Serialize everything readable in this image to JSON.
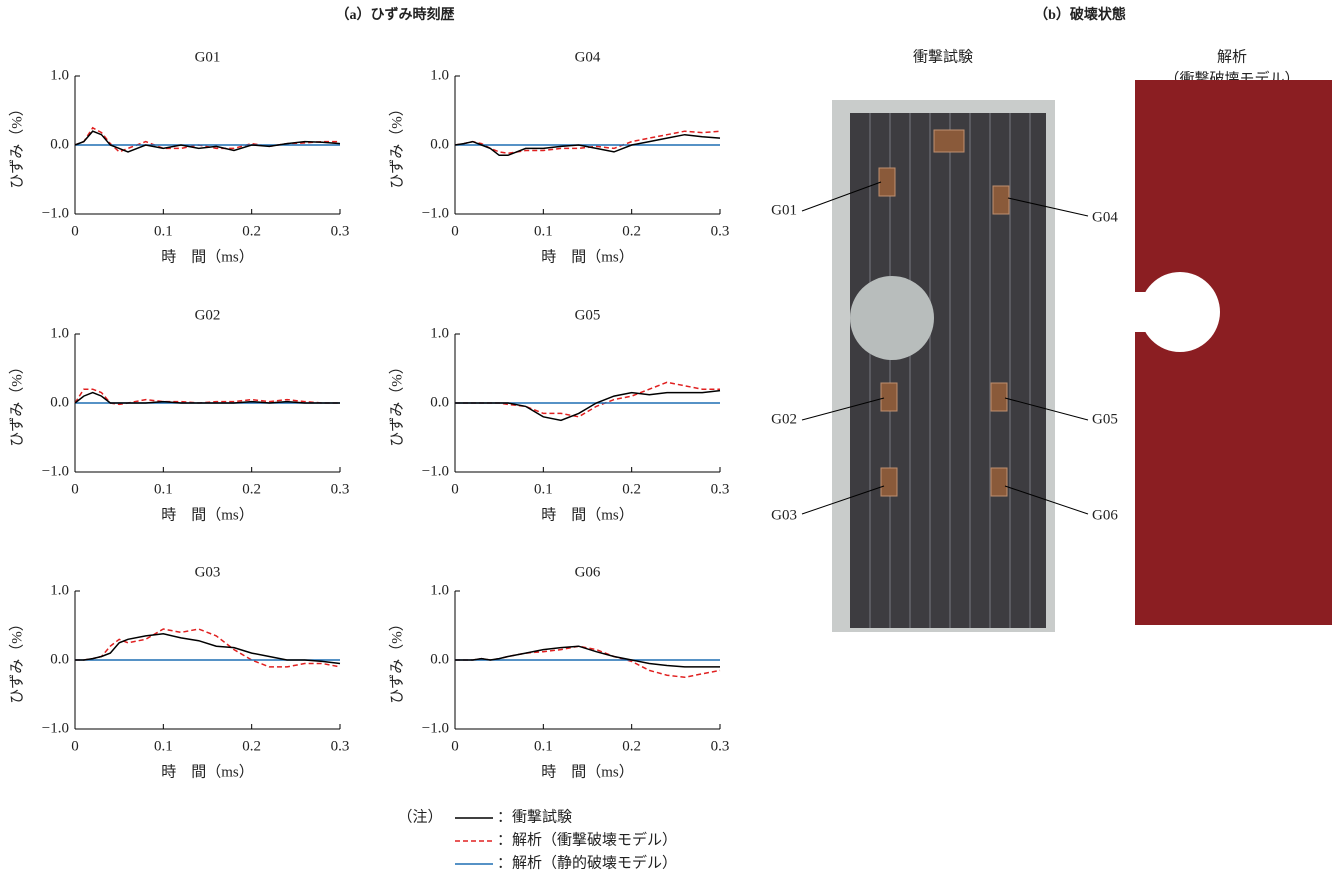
{
  "panel_a_title": "（a）ひずみ時刻歴",
  "panel_b": {
    "title": "（b）破壊状態",
    "photo_label": "衝撃試験",
    "model_label": [
      "解析",
      "（衝撃破壊モデル）"
    ],
    "gauges": [
      "G01",
      "G04",
      "G02",
      "G05",
      "G03",
      "G06"
    ]
  },
  "legend": {
    "label": "（注）",
    "entries": [
      {
        "name": "：衝撃試験",
        "color": "#000000",
        "dash": false
      },
      {
        "name": "：解析（衝撃破壊モデル）",
        "color": "#e02020",
        "dash": true
      },
      {
        "name": "：解析（静的破壊モデル）",
        "color": "#1f6eb4",
        "dash": false
      }
    ]
  },
  "chart_data": [
    {
      "type": "line",
      "title": "G01",
      "x_label": "時　間（ms）",
      "y_label": "ひずみ（%）",
      "xlim": [
        0,
        0.3
      ],
      "ylim": [
        -1,
        1
      ],
      "xticks": [
        0,
        0.1,
        0.2,
        0.3
      ],
      "yticks": [
        {
          "value": -1,
          "label": "−1.0"
        },
        {
          "value": 0,
          "label": "0.0"
        },
        {
          "value": 1,
          "label": "1.0"
        }
      ],
      "x": [
        0,
        0.01,
        0.02,
        0.03,
        0.04,
        0.05,
        0.06,
        0.08,
        0.1,
        0.12,
        0.14,
        0.16,
        0.18,
        0.2,
        0.22,
        0.24,
        0.26,
        0.28,
        0.3
      ],
      "series": [
        {
          "color": "#e02020",
          "dash": true,
          "values": [
            0,
            0.05,
            0.25,
            0.18,
            0.02,
            -0.1,
            -0.05,
            0.05,
            -0.05,
            -0.05,
            0,
            -0.05,
            -0.05,
            0.02,
            -0.02,
            0.02,
            0.03,
            0.05,
            0.05
          ]
        },
        {
          "color": "#1f6eb4",
          "dash": false,
          "values": [
            0,
            0,
            0,
            0,
            0,
            0,
            0,
            0,
            0,
            0,
            0,
            0,
            0,
            0,
            0,
            0,
            0,
            0,
            0
          ]
        },
        {
          "color": "#000000",
          "dash": false,
          "values": [
            0,
            0.05,
            0.2,
            0.15,
            0,
            -0.05,
            -0.1,
            0,
            -0.05,
            0,
            -0.05,
            -0.02,
            -0.08,
            0,
            -0.02,
            0.02,
            0.05,
            0.04,
            0.02
          ]
        }
      ]
    },
    {
      "type": "line",
      "title": "G04",
      "x_label": "時　間（ms）",
      "y_label": "ひずみ（%）",
      "xlim": [
        0,
        0.3
      ],
      "ylim": [
        -1,
        1
      ],
      "xticks": [
        0,
        0.1,
        0.2,
        0.3
      ],
      "yticks": [
        {
          "value": -1,
          "label": "−1.0"
        },
        {
          "value": 0,
          "label": "0.0"
        },
        {
          "value": 1,
          "label": "1.0"
        }
      ],
      "x": [
        0,
        0.01,
        0.02,
        0.03,
        0.04,
        0.05,
        0.06,
        0.08,
        0.1,
        0.12,
        0.14,
        0.16,
        0.18,
        0.2,
        0.22,
        0.24,
        0.26,
        0.28,
        0.3
      ],
      "series": [
        {
          "color": "#e02020",
          "dash": true,
          "values": [
            0,
            0.02,
            0.05,
            0.02,
            -0.05,
            -0.1,
            -0.12,
            -0.08,
            -0.08,
            -0.05,
            -0.05,
            -0.02,
            -0.05,
            0.05,
            0.1,
            0.15,
            0.2,
            0.18,
            0.2
          ]
        },
        {
          "color": "#1f6eb4",
          "dash": false,
          "values": [
            0,
            0,
            0,
            0,
            0,
            0,
            0,
            0,
            0,
            0,
            0,
            0,
            0,
            0,
            0,
            0,
            0,
            0,
            0
          ]
        },
        {
          "color": "#000000",
          "dash": false,
          "values": [
            0,
            0.02,
            0.05,
            0,
            -0.05,
            -0.15,
            -0.15,
            -0.05,
            -0.05,
            -0.02,
            0,
            -0.05,
            -0.1,
            0,
            0.05,
            0.1,
            0.15,
            0.12,
            0.1
          ]
        }
      ]
    },
    {
      "type": "line",
      "title": "G02",
      "x_label": "時　間（ms）",
      "y_label": "ひずみ（%）",
      "xlim": [
        0,
        0.3
      ],
      "ylim": [
        -1,
        1
      ],
      "xticks": [
        0,
        0.1,
        0.2,
        0.3
      ],
      "yticks": [
        {
          "value": -1,
          "label": "−1.0"
        },
        {
          "value": 0,
          "label": "0.0"
        },
        {
          "value": 1,
          "label": "1.0"
        }
      ],
      "x": [
        0,
        0.01,
        0.02,
        0.03,
        0.04,
        0.05,
        0.06,
        0.08,
        0.1,
        0.12,
        0.14,
        0.16,
        0.18,
        0.2,
        0.22,
        0.24,
        0.26,
        0.28,
        0.3
      ],
      "series": [
        {
          "color": "#e02020",
          "dash": true,
          "values": [
            0,
            0.2,
            0.2,
            0.15,
            0,
            -0.02,
            0,
            0.05,
            0.02,
            0.02,
            0,
            0.02,
            0.02,
            0.05,
            0.02,
            0.05,
            0.02,
            0,
            0
          ]
        },
        {
          "color": "#1f6eb4",
          "dash": false,
          "values": [
            0,
            0,
            0,
            0,
            0,
            0,
            0,
            0,
            0,
            0,
            0,
            0,
            0,
            0,
            0,
            0,
            0,
            0,
            0
          ]
        },
        {
          "color": "#000000",
          "dash": false,
          "values": [
            0,
            0.1,
            0.15,
            0.1,
            0,
            0,
            0,
            0,
            0.02,
            0,
            0,
            0,
            0,
            0.02,
            0,
            0.02,
            0,
            0,
            0
          ]
        }
      ]
    },
    {
      "type": "line",
      "title": "G05",
      "x_label": "時　間（ms）",
      "y_label": "ひずみ（%）",
      "xlim": [
        0,
        0.3
      ],
      "ylim": [
        -1,
        1
      ],
      "xticks": [
        0,
        0.1,
        0.2,
        0.3
      ],
      "yticks": [
        {
          "value": -1,
          "label": "−1.0"
        },
        {
          "value": 0,
          "label": "0.0"
        },
        {
          "value": 1,
          "label": "1.0"
        }
      ],
      "x": [
        0,
        0.01,
        0.02,
        0.03,
        0.04,
        0.05,
        0.06,
        0.08,
        0.1,
        0.12,
        0.14,
        0.16,
        0.18,
        0.2,
        0.22,
        0.24,
        0.26,
        0.28,
        0.3
      ],
      "series": [
        {
          "color": "#e02020",
          "dash": true,
          "values": [
            0,
            0,
            0,
            0,
            0,
            0,
            -0.02,
            -0.05,
            -0.15,
            -0.15,
            -0.2,
            -0.05,
            0.05,
            0.1,
            0.2,
            0.3,
            0.25,
            0.2,
            0.2
          ]
        },
        {
          "color": "#1f6eb4",
          "dash": false,
          "values": [
            0,
            0,
            0,
            0,
            0,
            0,
            0,
            0,
            0,
            0,
            0,
            0,
            0,
            0,
            0,
            0,
            0,
            0,
            0
          ]
        },
        {
          "color": "#000000",
          "dash": false,
          "values": [
            0,
            0,
            0,
            0,
            0,
            0,
            0,
            -0.05,
            -0.2,
            -0.25,
            -0.15,
            0,
            0.1,
            0.15,
            0.12,
            0.15,
            0.15,
            0.15,
            0.18
          ]
        }
      ]
    },
    {
      "type": "line",
      "title": "G03",
      "x_label": "時　間（ms）",
      "y_label": "ひずみ（%）",
      "xlim": [
        0,
        0.3
      ],
      "ylim": [
        -1,
        1
      ],
      "xticks": [
        0,
        0.1,
        0.2,
        0.3
      ],
      "yticks": [
        {
          "value": -1,
          "label": "−1.0"
        },
        {
          "value": 0,
          "label": "0.0"
        },
        {
          "value": 1,
          "label": "1.0"
        }
      ],
      "x": [
        0,
        0.01,
        0.02,
        0.03,
        0.04,
        0.05,
        0.06,
        0.08,
        0.1,
        0.12,
        0.14,
        0.16,
        0.18,
        0.2,
        0.22,
        0.24,
        0.26,
        0.28,
        0.3
      ],
      "series": [
        {
          "color": "#e02020",
          "dash": true,
          "values": [
            0,
            0,
            0.02,
            0.05,
            0.2,
            0.3,
            0.25,
            0.3,
            0.45,
            0.4,
            0.45,
            0.35,
            0.15,
            0,
            -0.1,
            -0.1,
            -0.05,
            -0.05,
            -0.1
          ]
        },
        {
          "color": "#1f6eb4",
          "dash": false,
          "values": [
            0,
            0,
            0,
            0,
            0,
            0,
            0,
            0,
            0,
            0,
            0,
            0,
            0,
            0,
            0,
            0,
            0,
            0,
            0
          ]
        },
        {
          "color": "#000000",
          "dash": false,
          "values": [
            0,
            0,
            0.02,
            0.05,
            0.1,
            0.25,
            0.3,
            0.35,
            0.38,
            0.32,
            0.28,
            0.2,
            0.18,
            0.1,
            0.05,
            0,
            0,
            -0.02,
            -0.05
          ]
        }
      ]
    },
    {
      "type": "line",
      "title": "G06",
      "x_label": "時　間（ms）",
      "y_label": "ひずみ（%）",
      "xlim": [
        0,
        0.3
      ],
      "ylim": [
        -1,
        1
      ],
      "xticks": [
        0,
        0.1,
        0.2,
        0.3
      ],
      "yticks": [
        {
          "value": -1,
          "label": "−1.0"
        },
        {
          "value": 0,
          "label": "0.0"
        },
        {
          "value": 1,
          "label": "1.0"
        }
      ],
      "x": [
        0,
        0.01,
        0.02,
        0.03,
        0.04,
        0.05,
        0.06,
        0.08,
        0.1,
        0.12,
        0.14,
        0.16,
        0.18,
        0.2,
        0.22,
        0.24,
        0.26,
        0.28,
        0.3
      ],
      "series": [
        {
          "color": "#e02020",
          "dash": true,
          "values": [
            0,
            0,
            0,
            0.02,
            0,
            0.02,
            0.05,
            0.1,
            0.12,
            0.15,
            0.2,
            0.15,
            0.05,
            -0.02,
            -0.15,
            -0.22,
            -0.25,
            -0.2,
            -0.15
          ]
        },
        {
          "color": "#1f6eb4",
          "dash": false,
          "values": [
            0,
            0,
            0,
            0,
            0,
            0,
            0,
            0,
            0,
            0,
            0,
            0,
            0,
            0,
            0,
            0,
            0,
            0,
            0
          ]
        },
        {
          "color": "#000000",
          "dash": false,
          "values": [
            0,
            0,
            0,
            0.02,
            0,
            0.02,
            0.05,
            0.1,
            0.15,
            0.18,
            0.2,
            0.12,
            0.05,
            0,
            -0.05,
            -0.08,
            -0.1,
            -0.1,
            -0.1
          ]
        }
      ]
    }
  ]
}
